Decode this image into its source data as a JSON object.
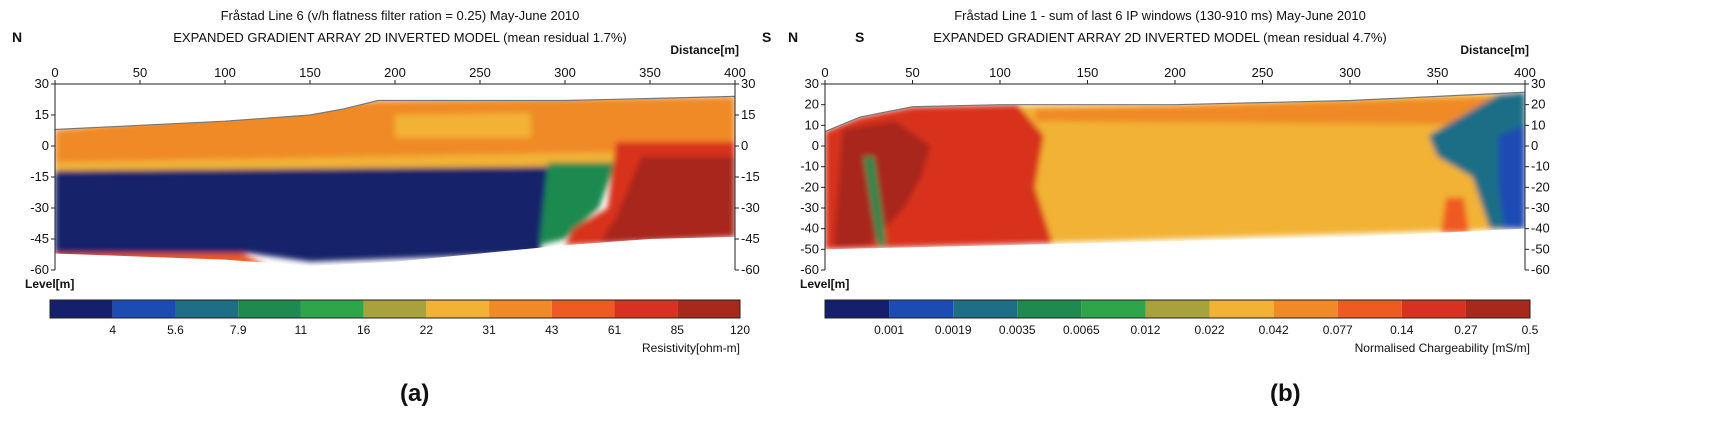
{
  "chart_data": [
    {
      "type": "heatmap",
      "panel_id": "a",
      "title_line1": "Fråstad Line 6 (v/h flatness filter ration = 0.25) May-June 2010",
      "title_line2": "EXPANDED GRADIENT ARRAY 2D INVERTED MODEL (mean residual 1.7%)",
      "direction_left": "N",
      "direction_right": "S",
      "xlabel": "Distance[m]",
      "ylabel": "Level[m]",
      "xlim": [
        0,
        400
      ],
      "ylim": [
        -60,
        30
      ],
      "x_ticks": [
        "0",
        "50",
        "100",
        "150",
        "200",
        "250",
        "300",
        "350",
        "400"
      ],
      "y_ticks": [
        "30",
        "15",
        "0",
        "-15",
        "-30",
        "-45",
        "-60"
      ],
      "colorbar_label": "Resistivity[ohm-m]",
      "colorbar_values": [
        "4",
        "5.6",
        "7.9",
        "11",
        "16",
        "22",
        "31",
        "43",
        "61",
        "85",
        "120"
      ],
      "colorbar_colors": [
        "#14206b",
        "#1d4bb4",
        "#1e6e86",
        "#1f8a4f",
        "#2ea54b",
        "#a8a23d",
        "#f2b234",
        "#f08a27",
        "#ef5a23",
        "#d8311f",
        "#a8281c"
      ],
      "surface_profile": [
        [
          0,
          8
        ],
        [
          50,
          10
        ],
        [
          100,
          12
        ],
        [
          150,
          15
        ],
        [
          170,
          18
        ],
        [
          190,
          22
        ],
        [
          250,
          22
        ],
        [
          300,
          22
        ],
        [
          350,
          23
        ],
        [
          400,
          24
        ]
      ],
      "bottom_profile": [
        [
          0,
          -52
        ],
        [
          100,
          -55
        ],
        [
          150,
          -58
        ],
        [
          200,
          -56
        ],
        [
          250,
          -52
        ],
        [
          300,
          -48
        ],
        [
          350,
          -45
        ],
        [
          400,
          -44
        ]
      ],
      "zones": [
        {
          "name": "surface-layer",
          "color": "#f08a27",
          "polygon": [
            [
              0,
              8
            ],
            [
              190,
              22
            ],
            [
              400,
              24
            ],
            [
              400,
              -2
            ],
            [
              0,
              -8
            ]
          ]
        },
        {
          "name": "near-surface-yellow",
          "color": "#f2b234",
          "polygon": [
            [
              200,
              15
            ],
            [
              280,
              16
            ],
            [
              280,
              4
            ],
            [
              200,
              4
            ]
          ]
        },
        {
          "name": "transition-band",
          "color": "#f2b234",
          "polygon": [
            [
              0,
              -8
            ],
            [
              400,
              -2
            ],
            [
              400,
              -10
            ],
            [
              0,
              -12
            ]
          ]
        },
        {
          "name": "conductive-body",
          "color": "#14206b",
          "polygon": [
            [
              0,
              -12
            ],
            [
              295,
              -10
            ],
            [
              285,
              -52
            ],
            [
              150,
              -56
            ],
            [
              115,
              -52
            ],
            [
              0,
              -52
            ]
          ]
        },
        {
          "name": "east-conductive-edge",
          "color": "#1f8a4f",
          "polygon": [
            [
              290,
              -8
            ],
            [
              330,
              -8
            ],
            [
              320,
              -30
            ],
            [
              300,
              -45
            ],
            [
              285,
              -48
            ]
          ]
        },
        {
          "name": "east-resistive-body",
          "color": "#d8311f",
          "polygon": [
            [
              330,
              2
            ],
            [
              400,
              2
            ],
            [
              400,
              -44
            ],
            [
              300,
              -48
            ],
            [
              305,
              -40
            ],
            [
              325,
              -30
            ]
          ]
        },
        {
          "name": "east-resistive-core",
          "color": "#a8281c",
          "polygon": [
            [
              345,
              -5
            ],
            [
              400,
              -5
            ],
            [
              400,
              -44
            ],
            [
              320,
              -47
            ],
            [
              330,
              -35
            ]
          ]
        },
        {
          "name": "west-resistive-base",
          "color": "#ef5a23",
          "polygon": [
            [
              0,
              -52
            ],
            [
              110,
              -52
            ],
            [
              125,
              -58
            ],
            [
              0,
              -58
            ]
          ]
        }
      ]
    },
    {
      "type": "heatmap",
      "panel_id": "b",
      "title_line1": "Fråstad Line 1 - sum of last 6 IP windows (130-910 ms) May-June 2010",
      "title_line2": "EXPANDED GRADIENT ARRAY 2D INVERTED MODEL (mean residual 4.7%)",
      "direction_left": "N",
      "direction_right": "S",
      "xlabel": "Distance[m]",
      "ylabel": "Level[m]",
      "xlim": [
        0,
        400
      ],
      "ylim": [
        -60,
        30
      ],
      "x_ticks": [
        "0",
        "50",
        "100",
        "150",
        "200",
        "250",
        "300",
        "350",
        "400"
      ],
      "y_ticks": [
        "30",
        "20",
        "10",
        "0",
        "-10",
        "-20",
        "-30",
        "-40",
        "-50",
        "-60"
      ],
      "colorbar_label": "Normalised Chargeability [mS/m]",
      "colorbar_values": [
        "0.001",
        "0.0019",
        "0.0035",
        "0.0065",
        "0.012",
        "0.022",
        "0.042",
        "0.077",
        "0.14",
        "0.27",
        "0.5"
      ],
      "colorbar_colors": [
        "#14206b",
        "#1d4bb4",
        "#1e6e86",
        "#1f8a4f",
        "#2ea54b",
        "#a8a23d",
        "#f2b234",
        "#f08a27",
        "#ef5a23",
        "#d8311f",
        "#a8281c"
      ],
      "surface_profile": [
        [
          0,
          7
        ],
        [
          20,
          14
        ],
        [
          50,
          19
        ],
        [
          100,
          20
        ],
        [
          200,
          20
        ],
        [
          300,
          22
        ],
        [
          350,
          24
        ],
        [
          400,
          26
        ]
      ],
      "bottom_profile": [
        [
          0,
          -50
        ],
        [
          50,
          -49
        ],
        [
          100,
          -48
        ],
        [
          150,
          -47
        ],
        [
          200,
          -46
        ],
        [
          250,
          -45
        ],
        [
          300,
          -44
        ],
        [
          350,
          -42
        ],
        [
          400,
          -40
        ]
      ],
      "zones": [
        {
          "name": "background",
          "color": "#f2b234",
          "polygon": [
            [
              0,
              7
            ],
            [
              50,
              19
            ],
            [
              200,
              20
            ],
            [
              400,
              26
            ],
            [
              400,
              -40
            ],
            [
              0,
              -50
            ]
          ]
        },
        {
          "name": "west-high",
          "color": "#d8311f",
          "polygon": [
            [
              0,
              7
            ],
            [
              20,
              14
            ],
            [
              50,
              19
            ],
            [
              110,
              20
            ],
            [
              125,
              5
            ],
            [
              120,
              -20
            ],
            [
              130,
              -47
            ],
            [
              0,
              -50
            ]
          ]
        },
        {
          "name": "west-core",
          "color": "#a8281c",
          "polygon": [
            [
              10,
              8
            ],
            [
              40,
              12
            ],
            [
              60,
              0
            ],
            [
              55,
              -15
            ],
            [
              45,
              -30
            ],
            [
              25,
              -48
            ],
            [
              5,
              -49
            ]
          ]
        },
        {
          "name": "west-dike",
          "color": "#1f8a4f",
          "polygon": [
            [
              22,
              -5
            ],
            [
              28,
              -5
            ],
            [
              35,
              -48
            ],
            [
              30,
              -48
            ]
          ]
        },
        {
          "name": "orange-band",
          "color": "#f08a27",
          "polygon": [
            [
              120,
              18
            ],
            [
              400,
              24
            ],
            [
              400,
              10
            ],
            [
              120,
              12
            ]
          ]
        },
        {
          "name": "east-low-body",
          "color": "#1e6e86",
          "polygon": [
            [
              345,
              5
            ],
            [
              385,
              25
            ],
            [
              400,
              26
            ],
            [
              400,
              -40
            ],
            [
              380,
              -40
            ],
            [
              370,
              -15
            ],
            [
              350,
              -5
            ]
          ]
        },
        {
          "name": "east-core",
          "color": "#1d4bb4",
          "polygon": [
            [
              385,
              5
            ],
            [
              400,
              10
            ],
            [
              400,
              -40
            ],
            [
              388,
              -40
            ],
            [
              385,
              -20
            ]
          ]
        },
        {
          "name": "east-high",
          "color": "#ef5a23",
          "polygon": [
            [
              355,
              -25
            ],
            [
              365,
              -25
            ],
            [
              368,
              -42
            ],
            [
              352,
              -42
            ]
          ]
        }
      ]
    }
  ],
  "captions": {
    "a": "(a)",
    "b": "(b)"
  }
}
